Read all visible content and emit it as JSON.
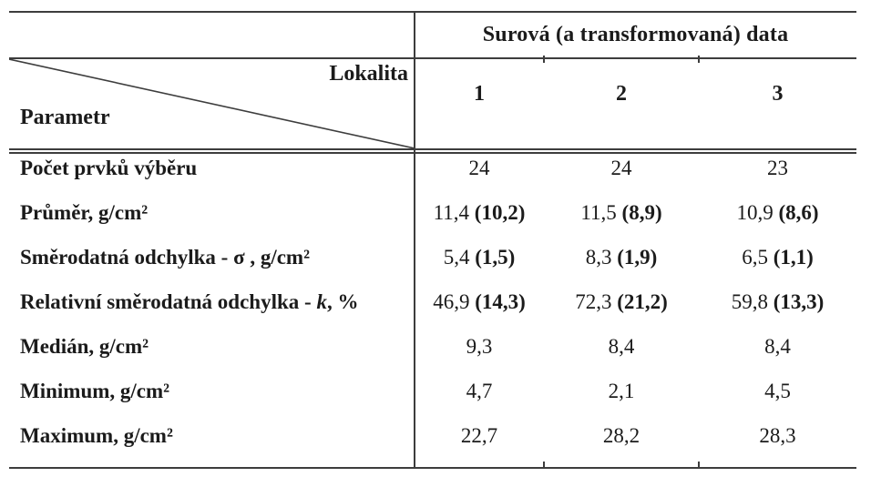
{
  "colors": {
    "background": "#ffffff",
    "line": "#3d3d3d",
    "text": "#1b1b1b"
  },
  "table": {
    "group_header": "Surová (a transformovaná) data",
    "corner": {
      "top_right_label": "Lokalita",
      "bottom_left_label": "Parametr"
    },
    "column_headers": [
      "1",
      "2",
      "3"
    ],
    "rows": [
      {
        "label": [
          {
            "t": "Počet prvků výběru"
          }
        ],
        "cells": [
          {
            "v": "24"
          },
          {
            "v": "24"
          },
          {
            "v": "23"
          }
        ]
      },
      {
        "label": [
          {
            "t": "Průměr, g/cm²"
          }
        ],
        "cells": [
          {
            "v": "11,4",
            "b": "(10,2)"
          },
          {
            "v": "11,5",
            "b": "(8,9)"
          },
          {
            "v": "10,9",
            "b": "(8,6)"
          }
        ]
      },
      {
        "label": [
          {
            "t": "Směrodatná odchylka - σ , g/cm²"
          }
        ],
        "cells": [
          {
            "v": "5,4",
            "b": "(1,5)"
          },
          {
            "v": "8,3",
            "b": "(1,9)"
          },
          {
            "v": "6,5",
            "b": "(1,1)"
          }
        ]
      },
      {
        "label": [
          {
            "t": "Relativní směrodatná odchylka - "
          },
          {
            "t": "k",
            "i": true
          },
          {
            "t": ", %"
          }
        ],
        "cells": [
          {
            "v": "46,9",
            "b": "(14,3)"
          },
          {
            "v": "72,3",
            "b": "(21,2)"
          },
          {
            "v": "59,8",
            "b": "(13,3)"
          }
        ]
      },
      {
        "label": [
          {
            "t": "Medián, g/cm²"
          }
        ],
        "cells": [
          {
            "v": "9,3"
          },
          {
            "v": "8,4"
          },
          {
            "v": "8,4"
          }
        ]
      },
      {
        "label": [
          {
            "t": "Minimum, g/cm²"
          }
        ],
        "cells": [
          {
            "v": "4,7"
          },
          {
            "v": "2,1"
          },
          {
            "v": "4,5"
          }
        ]
      },
      {
        "label": [
          {
            "t": "Maximum, g/cm²"
          }
        ],
        "cells": [
          {
            "v": "22,7"
          },
          {
            "v": "28,2"
          },
          {
            "v": "28,3"
          }
        ]
      }
    ]
  }
}
